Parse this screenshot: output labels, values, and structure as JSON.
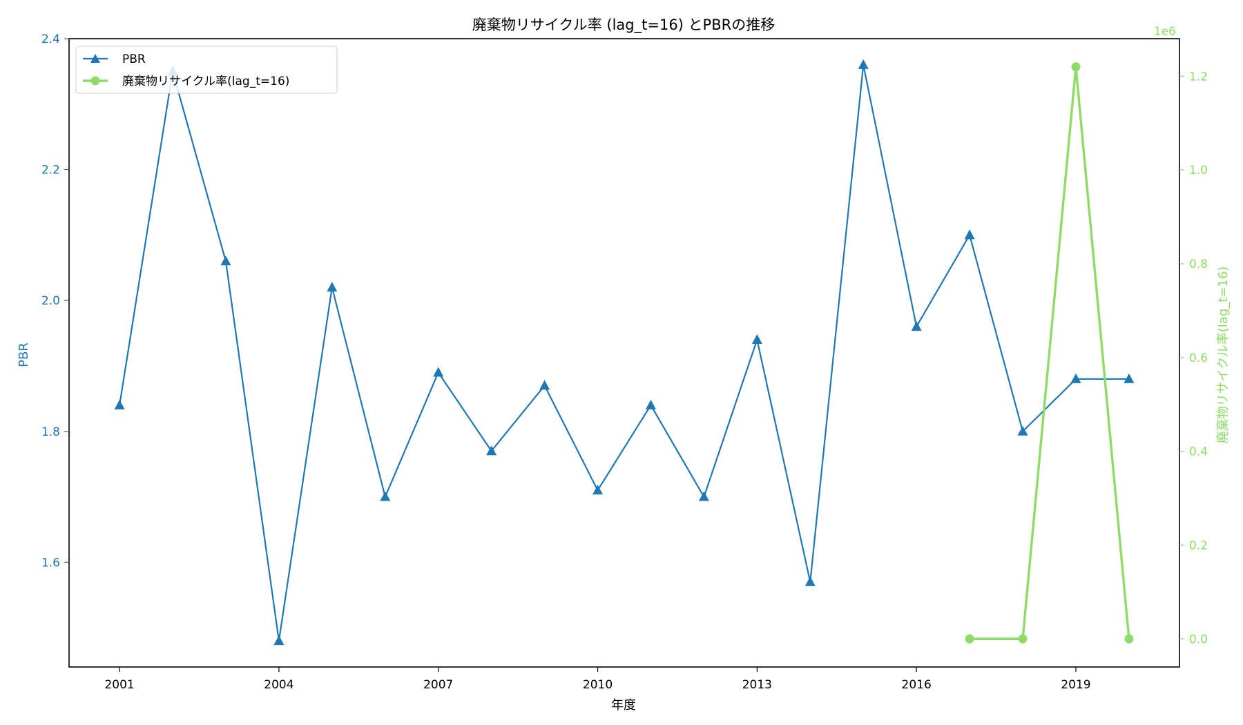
{
  "chart_data": {
    "type": "line",
    "title": "廃棄物リサイクル率 (lag_t=16) とPBRの推移",
    "xlabel": "年度",
    "ylabel_left": "PBR",
    "ylabel_right": "廃棄物リサイクル率(lag_t=16)",
    "right_axis_offset_text": "1e6",
    "xlim": [
      2000.05,
      2020.95
    ],
    "x_ticks": [
      2001,
      2004,
      2007,
      2010,
      2013,
      2016,
      2019
    ],
    "ylim_left": [
      1.44,
      2.4
    ],
    "y_ticks_left": [
      "1.6",
      "1.8",
      "2.0",
      "2.2",
      "2.4"
    ],
    "ylim_right": [
      -0.06,
      1.28
    ],
    "y_ticks_right": [
      "0.0",
      "0.2",
      "0.4",
      "0.6",
      "0.8",
      "1.0",
      "1.2"
    ],
    "grid": false,
    "legend_position": "upper-left",
    "series": [
      {
        "name": "PBR",
        "axis": "left",
        "color": "#1f77b4",
        "marker": "triangle",
        "x": [
          2001,
          2002,
          2003,
          2004,
          2005,
          2006,
          2007,
          2008,
          2009,
          2010,
          2011,
          2012,
          2013,
          2014,
          2015,
          2016,
          2017,
          2018,
          2019,
          2020
        ],
        "values": [
          1.84,
          2.35,
          2.06,
          1.48,
          2.02,
          1.7,
          1.89,
          1.77,
          1.87,
          1.71,
          1.84,
          1.7,
          1.94,
          1.57,
          2.36,
          1.96,
          2.1,
          1.8,
          1.88,
          1.88
        ]
      },
      {
        "name": "廃棄物リサイクル率(lag_t=16)",
        "axis": "right",
        "color": "#8edc67",
        "marker": "circle",
        "x": [
          2017,
          2018,
          2019,
          2020
        ],
        "values": [
          0.0,
          0.0,
          1.22,
          0.0
        ]
      }
    ]
  }
}
